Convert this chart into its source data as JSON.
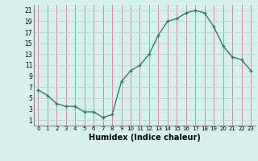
{
  "x": [
    0,
    1,
    2,
    3,
    4,
    5,
    6,
    7,
    8,
    9,
    10,
    11,
    12,
    13,
    14,
    15,
    16,
    17,
    18,
    19,
    20,
    21,
    22,
    23
  ],
  "y": [
    6.5,
    5.5,
    4.0,
    3.5,
    3.5,
    2.5,
    2.5,
    1.5,
    2.0,
    8.0,
    10.0,
    11.0,
    13.0,
    16.5,
    19.0,
    19.5,
    20.5,
    21.0,
    20.5,
    18.0,
    14.5,
    12.5,
    12.0,
    10.0
  ],
  "xlim": [
    -0.5,
    23.5
  ],
  "ylim": [
    0,
    22
  ],
  "yticks": [
    1,
    3,
    5,
    7,
    9,
    11,
    13,
    15,
    17,
    19,
    21
  ],
  "xticks": [
    0,
    1,
    2,
    3,
    4,
    5,
    6,
    7,
    8,
    9,
    10,
    11,
    12,
    13,
    14,
    15,
    16,
    17,
    18,
    19,
    20,
    21,
    22,
    23
  ],
  "xlabel": "Humidex (Indice chaleur)",
  "line_color": "#2e7d6e",
  "marker": "+",
  "bg_color": "#d6f0ee",
  "grid_color": "#b8d8d4",
  "grid_major_color": "#c8a0a0"
}
